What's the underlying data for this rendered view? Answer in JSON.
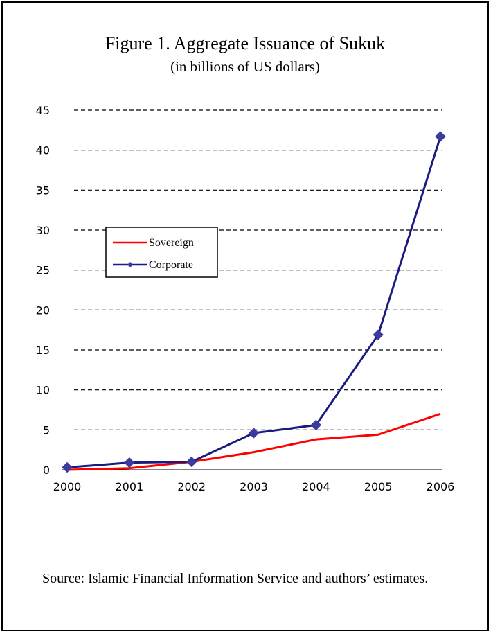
{
  "figure": {
    "title": "Figure 1.  Aggregate Issuance of Sukuk",
    "subtitle": "(in billions of US dollars)",
    "source": "Source: Islamic Financial Information Service and authors’ estimates."
  },
  "chart_data": {
    "type": "line",
    "x": [
      "2000",
      "2001",
      "2002",
      "2003",
      "2004",
      "2005",
      "2006"
    ],
    "ylim": [
      0,
      45
    ],
    "yticks": [
      0,
      5,
      10,
      15,
      20,
      25,
      30,
      35,
      40,
      45
    ],
    "grid": true,
    "legend_position": "left",
    "series": [
      {
        "name": "Sovereign",
        "color": "#ff0000",
        "marker": "none",
        "values": [
          0.0,
          0.2,
          1.0,
          2.2,
          3.8,
          4.4,
          7.0
        ]
      },
      {
        "name": "Corporate",
        "color": "#1a1a80",
        "marker": "diamond",
        "values": [
          0.3,
          0.9,
          1.0,
          4.6,
          5.6,
          16.9,
          41.7
        ]
      }
    ]
  }
}
